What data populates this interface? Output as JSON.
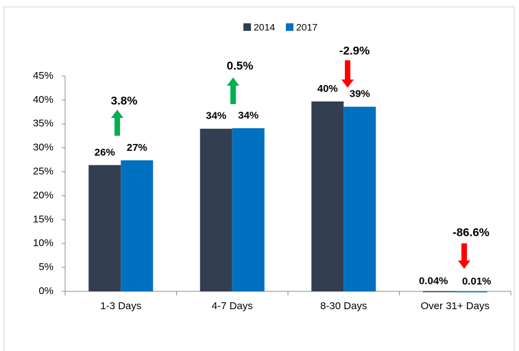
{
  "chart_data": {
    "type": "bar",
    "categories": [
      "1-3 Days",
      "4-7 Days",
      "8-30 Days",
      "Over 31+ Days"
    ],
    "series": [
      {
        "name": "2014",
        "color": "#333f50",
        "values": [
          26.4,
          34.0,
          39.7,
          0.04
        ],
        "value_labels": [
          "26%",
          "34%",
          "40%",
          "0.04%"
        ]
      },
      {
        "name": "2017",
        "color": "#0070c0",
        "values": [
          27.4,
          34.1,
          38.6,
          0.01
        ],
        "value_labels": [
          "27%",
          "34%",
          "39%",
          "0.01%"
        ]
      }
    ],
    "change_labels": [
      "3.8%",
      "0.5%",
      "-2.9%",
      "-86.6%"
    ],
    "ylim": [
      0,
      45
    ],
    "yticks": [
      {
        "value": 0,
        "label": "0%"
      },
      {
        "value": 5,
        "label": "5%"
      },
      {
        "value": 10,
        "label": "10%"
      },
      {
        "value": 15,
        "label": "15%"
      },
      {
        "value": 20,
        "label": "20%"
      },
      {
        "value": 25,
        "label": "25%"
      },
      {
        "value": 30,
        "label": "30%"
      },
      {
        "value": 35,
        "label": "35%"
      },
      {
        "value": 40,
        "label": "40%"
      },
      {
        "value": 45,
        "label": "45%"
      }
    ],
    "legend": "top"
  }
}
